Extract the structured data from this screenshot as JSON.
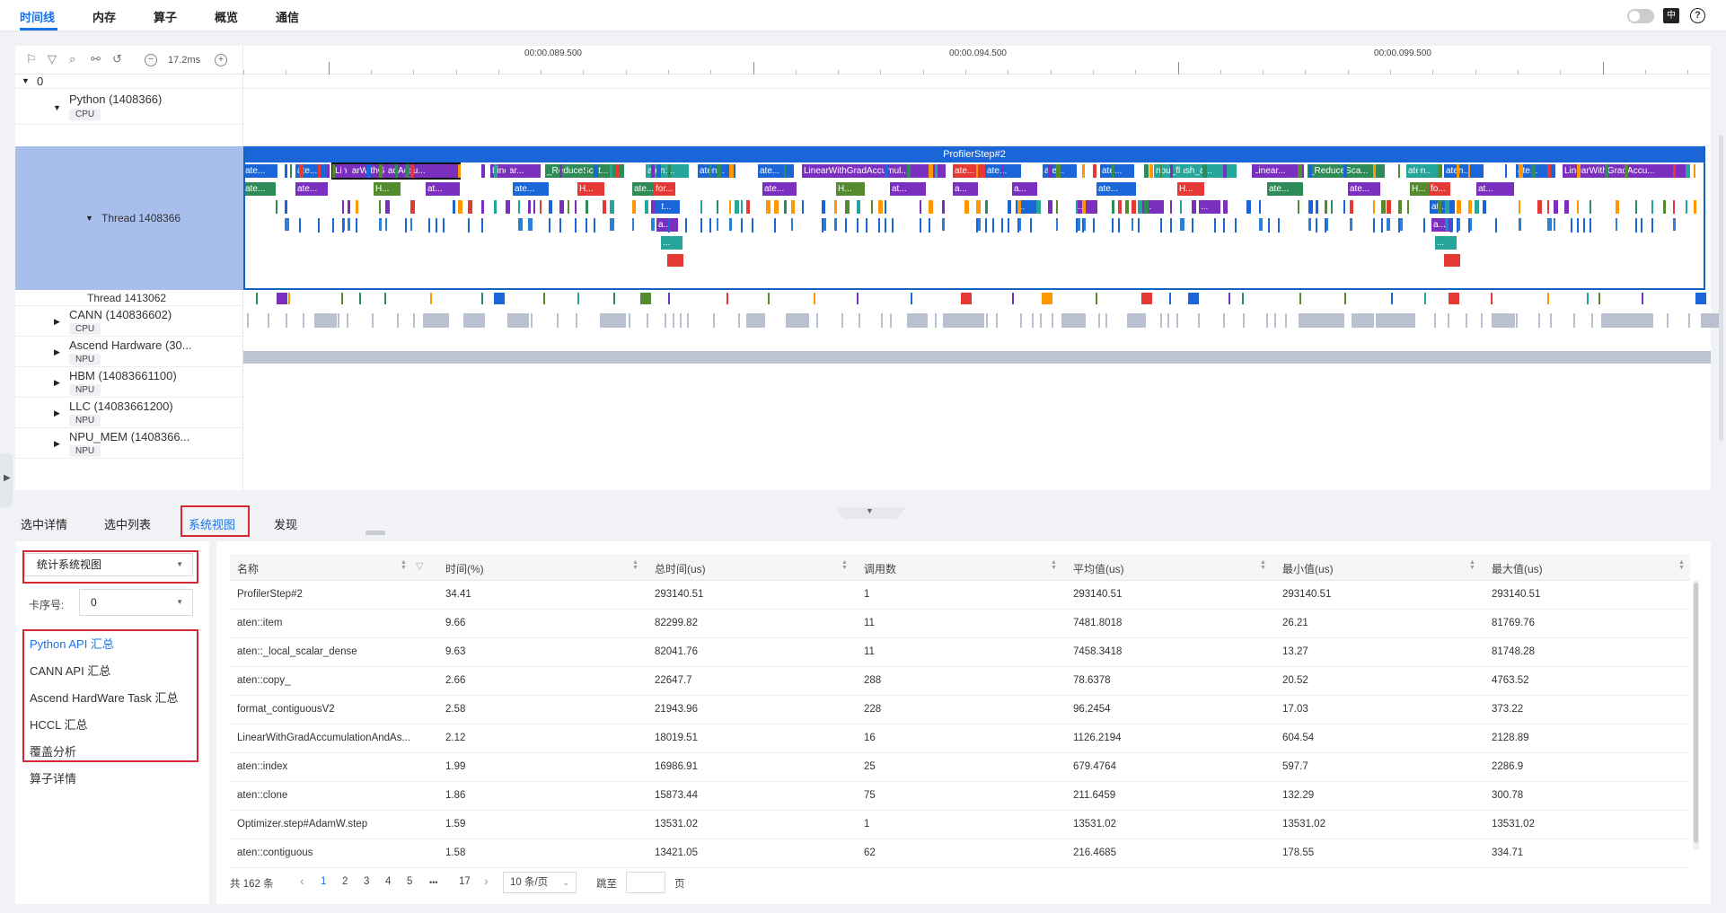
{
  "top_tabs": [
    "时间线",
    "内存",
    "算子",
    "概览",
    "通信"
  ],
  "toolbar": {
    "zoom_value": "17.2ms"
  },
  "ruler_labels": [
    "00:00.089.500",
    "00:00.094.500",
    "00:00.099.500"
  ],
  "tracks": {
    "root": "0",
    "python": {
      "name": "Python (1408366)",
      "tag": "CPU"
    },
    "thread_selected": "Thread 1408366",
    "thread_other": "Thread 1413062",
    "cann": {
      "name": "CANN (140836602)",
      "tag": "CPU"
    },
    "ascend": {
      "name": "Ascend Hardware (30...",
      "tag": "NPU"
    },
    "hbm": {
      "name": "HBM (14083661100)",
      "tag": "NPU"
    },
    "llc": {
      "name": "LLC (14083661200)",
      "tag": "NPU"
    },
    "npu_mem": {
      "name": "NPU_MEM (1408366...",
      "tag": "NPU"
    }
  },
  "flame": {
    "step_label": "ProfilerStep#2",
    "blocks": [
      {
        "l": "ate...",
        "c": "#1a66d9"
      },
      {
        "l": "ate...",
        "c": "#1a66d9"
      },
      {
        "l": "LinearWithGradAccu...",
        "c": "#7b2fbe"
      },
      {
        "l": "Linear...",
        "c": "#7b2fbe"
      },
      {
        "l": "_ReduceScat...",
        "c": "#2e8b57"
      },
      {
        "l": "aten:...",
        "c": "#26a69a"
      },
      {
        "l": "aten...",
        "c": "#1a66d9"
      },
      {
        "l": "ate...",
        "c": "#1a66d9"
      },
      {
        "l": "LinearWithGradAccumul...",
        "c": "#7b2fbe"
      },
      {
        "l": "ate...",
        "c": "#e53935"
      },
      {
        "l": "ate...",
        "c": "#1a66d9"
      },
      {
        "l": "ate...",
        "c": "#1a66d9"
      },
      {
        "l": "ate...",
        "c": "#1a66d9"
      },
      {
        "l": "npu_flash_a...",
        "c": "#26a69a"
      },
      {
        "l": "Linear...",
        "c": "#7b2fbe"
      },
      {
        "l": "_ReduceSca...",
        "c": "#2e8b57"
      },
      {
        "l": "aten...",
        "c": "#26a69a"
      },
      {
        "l": "aten...",
        "c": "#1a66d9"
      },
      {
        "l": "ate...",
        "c": "#1a66d9"
      },
      {
        "l": "LinearWithGradAccu...",
        "c": "#7b2fbe"
      }
    ],
    "row2": [
      {
        "l": "ate...",
        "c": "#2e8b57"
      },
      {
        "l": "ate...",
        "c": "#7b2fbe"
      },
      {
        "l": "H...",
        "c": "#558b2f"
      },
      {
        "l": "at...",
        "c": "#7b2fbe"
      },
      {
        "l": "ate...",
        "c": "#1a66d9"
      },
      {
        "l": "H...",
        "c": "#e53935"
      },
      {
        "l": "ate...",
        "c": "#2e8b57"
      },
      {
        "l": "ate...",
        "c": "#7b2fbe"
      },
      {
        "l": "H...",
        "c": "#558b2f"
      },
      {
        "l": "at...",
        "c": "#7b2fbe"
      },
      {
        "l": "a...",
        "c": "#7b2fbe"
      },
      {
        "l": "a...",
        "c": "#7b2fbe"
      },
      {
        "l": "ate...",
        "c": "#1a66d9"
      },
      {
        "l": "H...",
        "c": "#e53935"
      },
      {
        "l": "ate...",
        "c": "#2e8b57"
      },
      {
        "l": "ate...",
        "c": "#7b2fbe"
      },
      {
        "l": "H...",
        "c": "#558b2f"
      },
      {
        "l": "at...",
        "c": "#7b2fbe"
      }
    ],
    "nested": [
      {
        "l": "for...",
        "c": "#e53935"
      },
      {
        "l": "at...",
        "c": "#1a66d9"
      },
      {
        "l": "a...",
        "c": "#7b2fbe"
      },
      {
        "l": "...",
        "c": "#26a69a"
      },
      {
        "l": "fo...",
        "c": "#e53935"
      },
      {
        "l": "at...",
        "c": "#1a66d9"
      },
      {
        "l": "a...",
        "c": "#7b2fbe"
      },
      {
        "l": "...",
        "c": "#26a69a"
      },
      {
        "l": "...",
        "c": "#1a66d9"
      },
      {
        "l": "...",
        "c": "#7b2fbe"
      },
      {
        "l": "...",
        "c": "#7b2fbe"
      },
      {
        "l": "...",
        "c": "#7b2fbe"
      }
    ]
  },
  "bottom_tabs": [
    "选中详情",
    "选中列表",
    "系统视图",
    "发现"
  ],
  "left_panel": {
    "view_select": "统计系统视图",
    "card_label": "卡序号:",
    "card_value": "0",
    "items": [
      "Python API 汇总",
      "CANN API 汇总",
      "Ascend HardWare Task 汇总",
      "HCCL 汇总",
      "覆盖分析",
      "算子详情"
    ]
  },
  "table": {
    "columns": [
      "名称",
      "时间(%)",
      "总时间(us)",
      "调用数",
      "平均值(us)",
      "最小值(us)",
      "最大值(us)"
    ],
    "rows": [
      [
        "ProfilerStep#2",
        "34.41",
        "293140.51",
        "1",
        "293140.51",
        "293140.51",
        "293140.51"
      ],
      [
        "aten::item",
        "9.66",
        "82299.82",
        "11",
        "7481.8018",
        "26.21",
        "81769.76"
      ],
      [
        "aten::_local_scalar_dense",
        "9.63",
        "82041.76",
        "11",
        "7458.3418",
        "13.27",
        "81748.28"
      ],
      [
        "aten::copy_",
        "2.66",
        "22647.7",
        "288",
        "78.6378",
        "20.52",
        "4763.52"
      ],
      [
        "format_contiguousV2",
        "2.58",
        "21943.96",
        "228",
        "96.2454",
        "17.03",
        "373.22"
      ],
      [
        "LinearWithGradAccumulationAndAs...",
        "2.12",
        "18019.51",
        "16",
        "1126.2194",
        "604.54",
        "2128.89"
      ],
      [
        "aten::index",
        "1.99",
        "16986.91",
        "25",
        "679.4764",
        "597.7",
        "2286.9"
      ],
      [
        "aten::clone",
        "1.86",
        "15873.44",
        "75",
        "211.6459",
        "132.29",
        "300.78"
      ],
      [
        "Optimizer.step#AdamW.step",
        "1.59",
        "13531.02",
        "1",
        "13531.02",
        "13531.02",
        "13531.02"
      ],
      [
        "aten::contiguous",
        "1.58",
        "13421.05",
        "62",
        "216.4685",
        "178.55",
        "334.71"
      ]
    ]
  },
  "pager": {
    "total": "共 162 条",
    "prev": "‹",
    "pages": [
      "1",
      "2",
      "3",
      "4",
      "5",
      "•••",
      "17"
    ],
    "next": "›",
    "page_size": "10 条/页",
    "jump_label": "跳至",
    "page_unit": "页"
  }
}
